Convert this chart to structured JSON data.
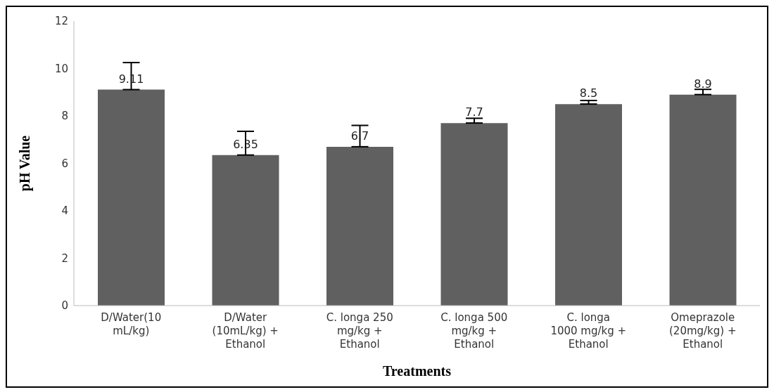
{
  "chart_data": {
    "type": "bar",
    "xlabel": "Treatments",
    "ylabel": "pH Value",
    "categories": [
      "D/Water(10 mL/kg)",
      "D/Water (10mL/kg) + Ethanol",
      "C. longa 250 mg/kg + Ethanol",
      "C. longa 500 mg/kg + Ethanol",
      "C. longa 1000 mg/kg + Ethanol",
      "Omeprazole (20mg/kg) + Ethanol"
    ],
    "values": [
      9.11,
      6.35,
      6.7,
      7.7,
      8.5,
      8.9
    ],
    "errors": [
      [
        9.11,
        10.25
      ],
      [
        6.35,
        7.35
      ],
      [
        6.7,
        7.6
      ],
      [
        7.7,
        7.9
      ],
      [
        8.5,
        8.65
      ],
      [
        8.9,
        9.12
      ]
    ],
    "color": "#606060",
    "ylim": [
      0,
      12
    ],
    "yticks": [
      0,
      2,
      4,
      6,
      8,
      10,
      12
    ],
    "grid": false,
    "legend": false,
    "data_labels": true
  }
}
